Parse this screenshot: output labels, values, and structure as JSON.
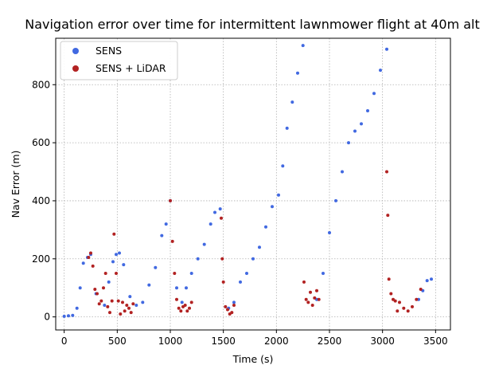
{
  "chart_data": {
    "type": "scatter",
    "title": "Navigation error over time for intermittent lawnmower flight at 40m alt",
    "xlabel": "Time (s)",
    "ylabel": "Nav Error (m)",
    "xlim": [
      -80,
      3640
    ],
    "ylim": [
      -45,
      960
    ],
    "x_ticks": [
      0,
      500,
      1000,
      1500,
      2000,
      2500,
      3000,
      3500
    ],
    "y_ticks": [
      0,
      200,
      400,
      600,
      800
    ],
    "grid": true,
    "legend_position": "upper-left",
    "series": [
      {
        "name": "SENS",
        "color": "#4169e1",
        "x": [
          0,
          40,
          80,
          120,
          150,
          180,
          220,
          250,
          300,
          380,
          420,
          460,
          490,
          520,
          560,
          620,
          680,
          740,
          800,
          860,
          920,
          960,
          1000,
          1060,
          1110,
          1150,
          1200,
          1260,
          1320,
          1380,
          1420,
          1470,
          1550,
          1600,
          1660,
          1720,
          1780,
          1840,
          1900,
          1960,
          2020,
          2060,
          2100,
          2150,
          2200,
          2250,
          2380,
          2440,
          2500,
          2560,
          2620,
          2680,
          2740,
          2800,
          2860,
          2920,
          2980,
          3040,
          3340,
          3380,
          3420,
          3460
        ],
        "y": [
          2,
          4,
          5,
          30,
          100,
          185,
          205,
          215,
          80,
          40,
          120,
          190,
          215,
          220,
          180,
          70,
          40,
          50,
          110,
          170,
          280,
          320,
          400,
          100,
          50,
          100,
          150,
          200,
          250,
          320,
          360,
          372,
          30,
          50,
          120,
          150,
          200,
          240,
          310,
          380,
          420,
          520,
          650,
          740,
          840,
          935,
          60,
          150,
          290,
          400,
          500,
          600,
          640,
          665,
          710,
          770,
          850,
          922,
          60,
          90,
          125,
          130
        ]
      },
      {
        "name": "SENS + LiDAR",
        "color": "#b22222",
        "x": [
          230,
          250,
          270,
          290,
          310,
          330,
          350,
          370,
          390,
          410,
          430,
          450,
          470,
          490,
          510,
          530,
          550,
          570,
          590,
          610,
          630,
          650,
          1000,
          1020,
          1040,
          1060,
          1080,
          1100,
          1120,
          1140,
          1160,
          1180,
          1200,
          1480,
          1490,
          1500,
          1520,
          1540,
          1560,
          1580,
          1600,
          2260,
          2280,
          2300,
          2320,
          2340,
          2360,
          2380,
          2400,
          3040,
          3050,
          3060,
          3080,
          3100,
          3120,
          3140,
          3160,
          3200,
          3240,
          3280,
          3320,
          3360
        ],
        "y": [
          205,
          220,
          175,
          95,
          80,
          45,
          55,
          100,
          150,
          35,
          15,
          55,
          285,
          150,
          55,
          10,
          50,
          20,
          40,
          30,
          15,
          45,
          400,
          260,
          150,
          60,
          30,
          20,
          35,
          40,
          20,
          30,
          50,
          340,
          200,
          120,
          35,
          25,
          10,
          15,
          40,
          120,
          60,
          50,
          85,
          40,
          65,
          90,
          60,
          500,
          350,
          130,
          80,
          60,
          55,
          20,
          50,
          30,
          20,
          35,
          60,
          95
        ]
      }
    ]
  }
}
